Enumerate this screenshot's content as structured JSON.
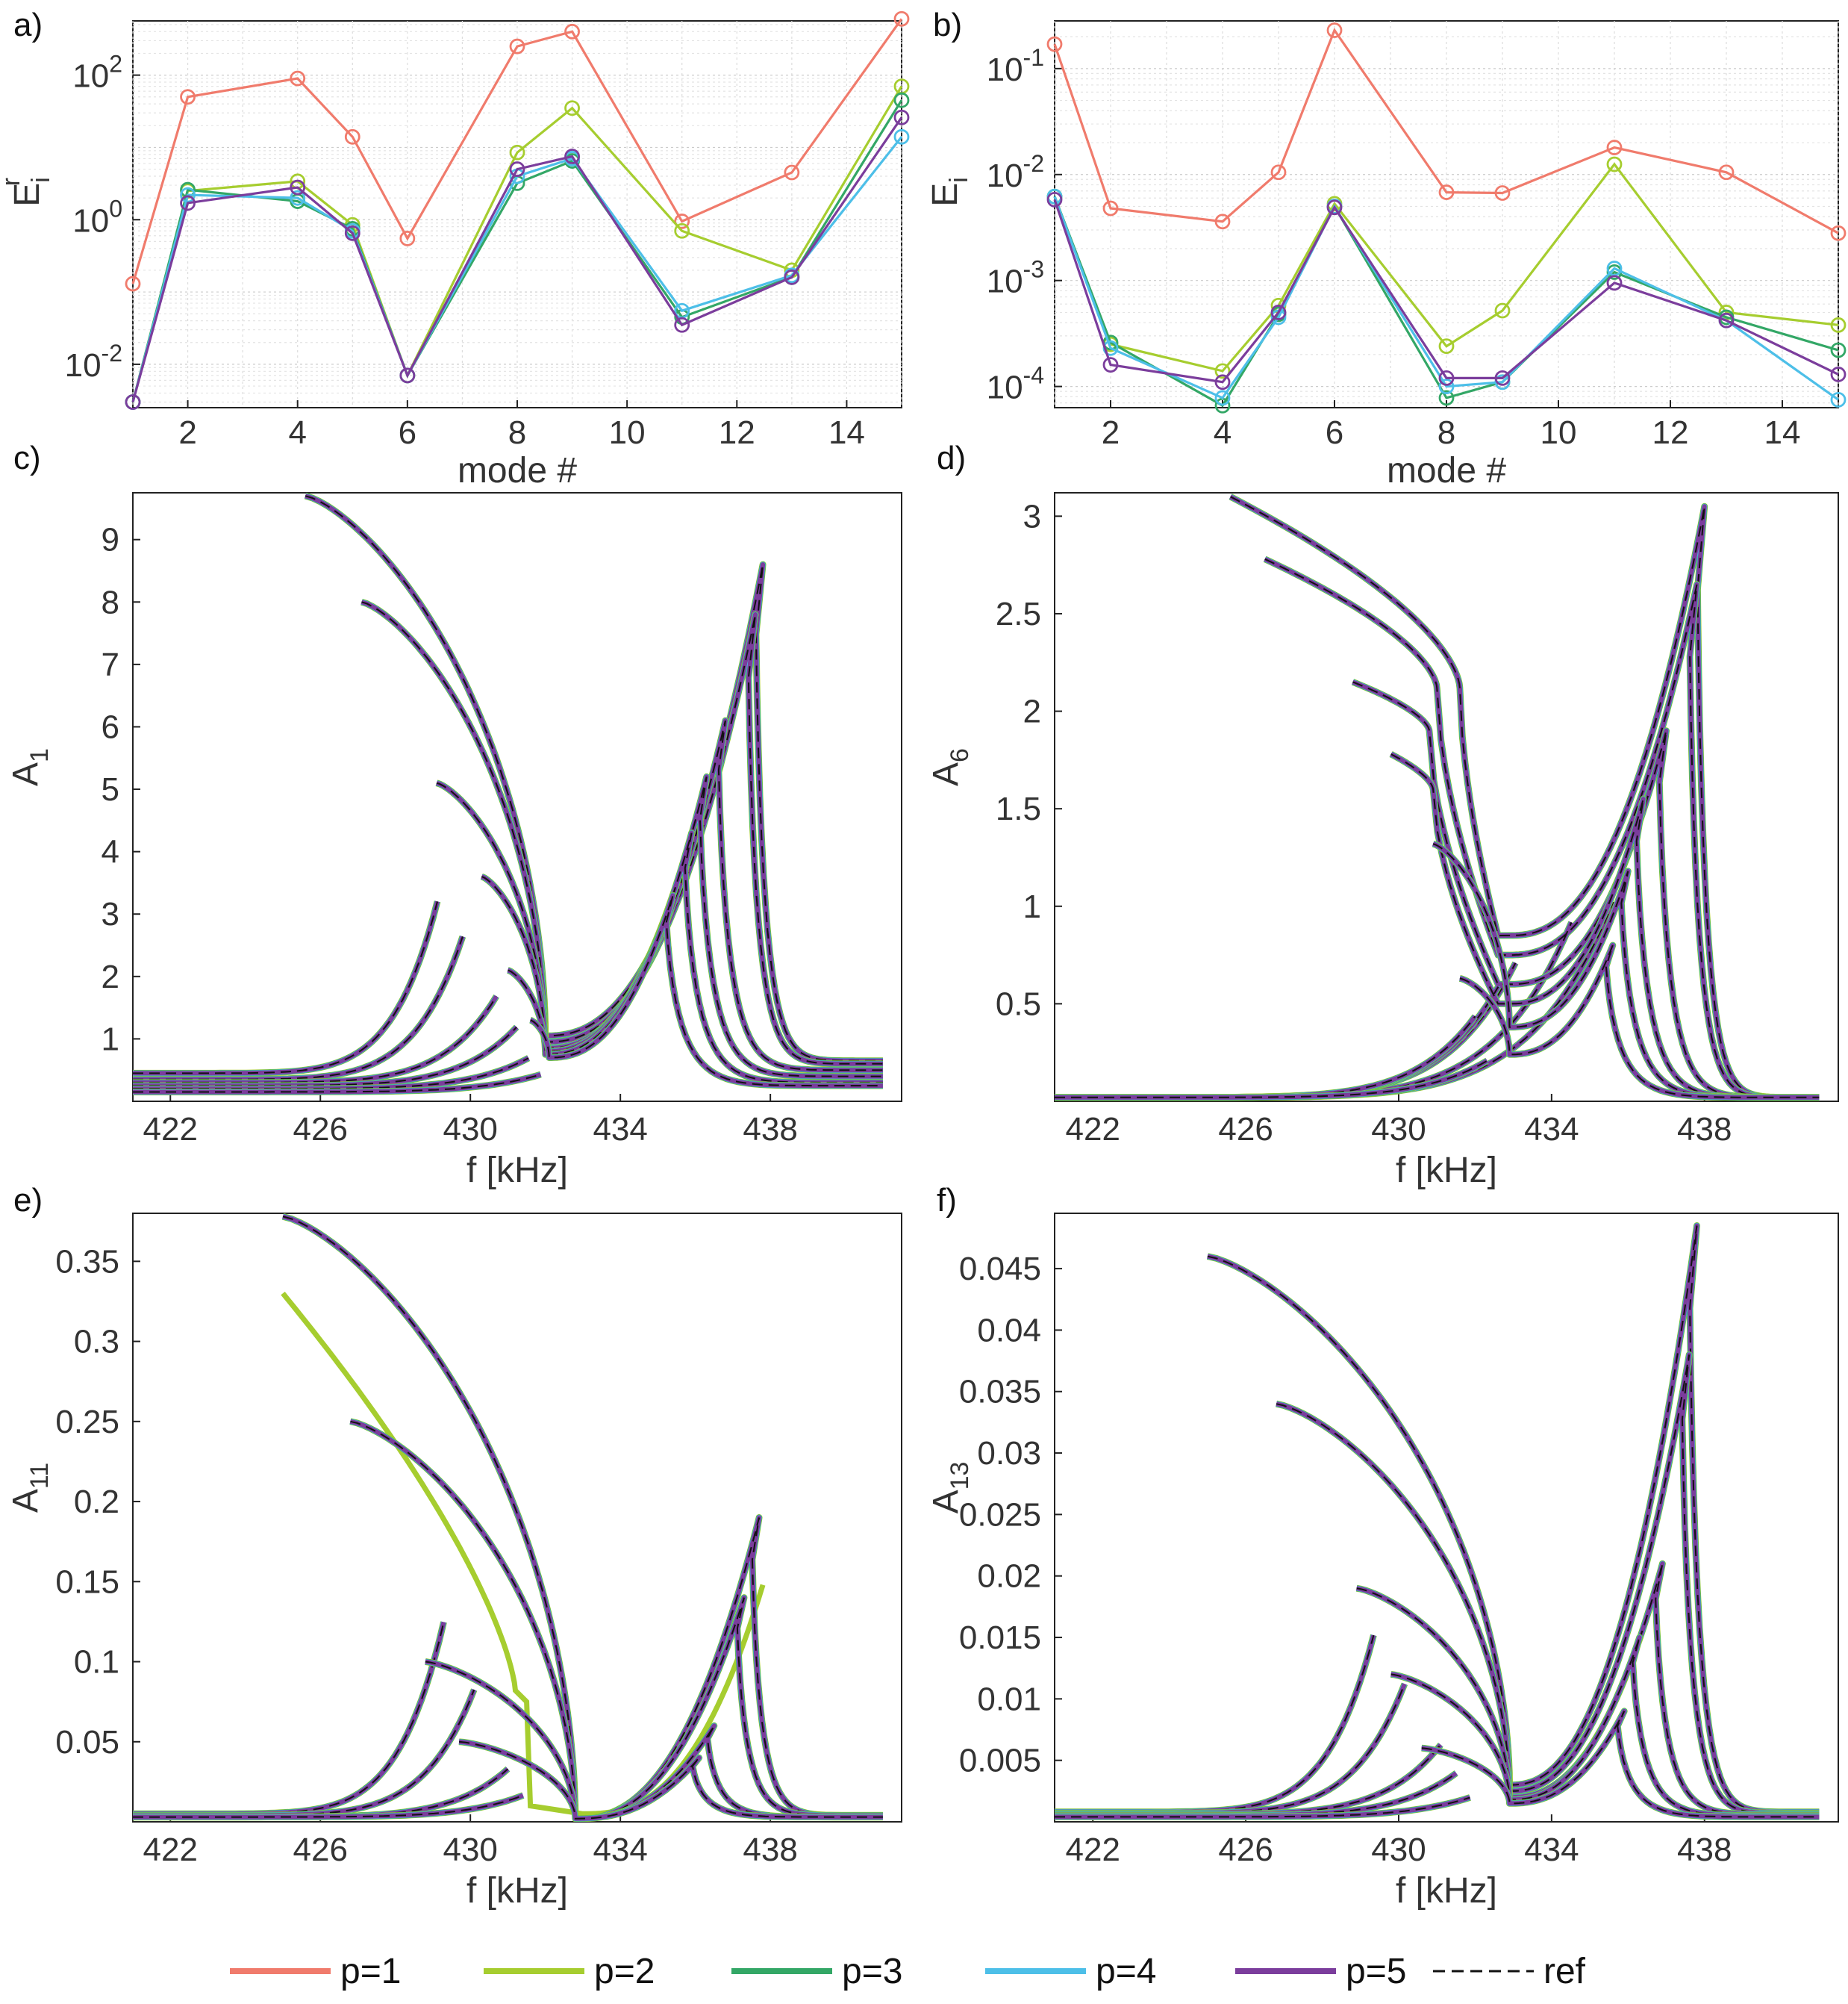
{
  "palette": {
    "p1": "#f07b6c",
    "p2": "#a6cd2f",
    "p3": "#33a766",
    "p4": "#4dbfe8",
    "p5": "#7b3d9c",
    "ref": "#111111"
  },
  "legend": [
    {
      "label": "p=1",
      "color": "#f07b6c",
      "dashed": false
    },
    {
      "label": "p=2",
      "color": "#a6cd2f",
      "dashed": false
    },
    {
      "label": "p=3",
      "color": "#33a766",
      "dashed": false
    },
    {
      "label": "p=4",
      "color": "#4dbfe8",
      "dashed": false
    },
    {
      "label": "p=5",
      "color": "#7b3d9c",
      "dashed": false
    },
    {
      "label": "ref",
      "color": "#111111",
      "dashed": true
    }
  ],
  "chart_data": [
    {
      "panel": "a)",
      "type": "line",
      "xlabel": "mode #",
      "ylabel": "E_i^r",
      "yscale": "log",
      "xlim": [
        1,
        15
      ],
      "ylim_log10": [
        -2.6,
        2.75
      ],
      "xticks": [
        2,
        4,
        6,
        8,
        10,
        12,
        14
      ],
      "yticks": [
        {
          "v": 2,
          "mant": "10",
          "exp": "2"
        },
        {
          "v": 0,
          "mant": "10",
          "exp": "0"
        },
        {
          "v": -2,
          "mant": "10",
          "exp": "-2"
        }
      ],
      "x": [
        1,
        2,
        4,
        5,
        6,
        8,
        9,
        11,
        13,
        15
      ],
      "series": [
        {
          "name": "p=1",
          "values": [
            0.13,
            50,
            90,
            14,
            0.55,
            250,
            400,
            0.95,
            4.5,
            600
          ]
        },
        {
          "name": "p=2",
          "values": [
            0.003,
            2.5,
            3.4,
            0.85,
            0.007,
            8.5,
            35,
            0.7,
            0.2,
            70
          ]
        },
        {
          "name": "p=3",
          "values": [
            0.003,
            2.6,
            1.8,
            0.75,
            0.007,
            3.2,
            6.5,
            0.045,
            0.16,
            45
          ]
        },
        {
          "name": "p=4",
          "values": [
            0.003,
            2.2,
            2.0,
            0.7,
            0.007,
            4.0,
            7.0,
            0.055,
            0.17,
            14
          ]
        },
        {
          "name": "p=5",
          "values": [
            0.003,
            1.7,
            2.8,
            0.65,
            0.007,
            5.0,
            7.5,
            0.035,
            0.16,
            26
          ]
        }
      ]
    },
    {
      "panel": "b)",
      "type": "line",
      "xlabel": "mode #",
      "ylabel": "E_i",
      "yscale": "log",
      "xlim": [
        1,
        15
      ],
      "ylim_log10": [
        -4.2,
        -0.55
      ],
      "xticks": [
        2,
        4,
        6,
        8,
        10,
        12,
        14
      ],
      "yticks": [
        {
          "v": -1,
          "mant": "10",
          "exp": "-1"
        },
        {
          "v": -2,
          "mant": "10",
          "exp": "-2"
        },
        {
          "v": -3,
          "mant": "10",
          "exp": "-3"
        },
        {
          "v": -4,
          "mant": "10",
          "exp": "-4"
        }
      ],
      "x": [
        1,
        2,
        4,
        5,
        6,
        8,
        9,
        11,
        13,
        15
      ],
      "series": [
        {
          "name": "p=1",
          "values": [
            0.17,
            0.0048,
            0.0036,
            0.0105,
            0.23,
            0.0068,
            0.0067,
            0.018,
            0.0105,
            0.0028
          ]
        },
        {
          "name": "p=2",
          "values": [
            0.0062,
            0.00025,
            0.00014,
            0.00058,
            0.0053,
            0.00024,
            0.00052,
            0.0125,
            0.0005,
            0.00038
          ]
        },
        {
          "name": "p=3",
          "values": [
            0.0062,
            0.00026,
            6.6e-05,
            0.00048,
            0.005,
            7.8e-05,
            0.00011,
            0.0012,
            0.00045,
            0.00022
          ]
        },
        {
          "name": "p=4",
          "values": [
            0.0062,
            0.00023,
            7.8e-05,
            0.00045,
            0.005,
            0.0001,
            0.00011,
            0.0013,
            0.00042,
            7.5e-05
          ]
        },
        {
          "name": "p=5",
          "values": [
            0.0058,
            0.00016,
            0.00011,
            0.0005,
            0.0049,
            0.00012,
            0.00012,
            0.00095,
            0.00042,
            0.00013
          ]
        }
      ]
    },
    {
      "panel": "c)",
      "type": "line",
      "xlabel": "f [kHz]",
      "ylabel": "A_1",
      "ylabel_sub": "1",
      "xlim": [
        421,
        441.5
      ],
      "ylim": [
        0,
        9.75
      ],
      "xticks": [
        422,
        426,
        430,
        434,
        438
      ],
      "yticks": [
        1,
        2,
        3,
        4,
        5,
        6,
        7,
        8,
        9
      ],
      "curves": [
        {
          "left_peak": [
            425.6,
            9.7
          ],
          "right_peak": [
            437.8,
            8.6
          ],
          "dip": [
            432.0,
            1.05
          ],
          "floor": 0.45,
          "tail": 0.65
        },
        {
          "left_peak": [
            427.1,
            8.0
          ],
          "right_peak": [
            437.6,
            7.8
          ],
          "dip": [
            432.0,
            0.95
          ],
          "floor": 0.35,
          "tail": 0.6
        },
        {
          "left_peak": [
            429.1,
            5.1
          ],
          "right_peak": [
            436.8,
            6.1
          ],
          "dip": [
            432.0,
            0.85
          ],
          "floor": 0.3,
          "tail": 0.5
        },
        {
          "left_peak": [
            430.3,
            3.6
          ],
          "right_peak": [
            436.3,
            5.2
          ],
          "dip": [
            432.0,
            0.8
          ],
          "floor": 0.25,
          "tail": 0.4
        },
        {
          "left_peak": [
            431.0,
            2.1
          ],
          "right_peak": [
            435.9,
            4.3
          ],
          "dip": [
            432.0,
            0.75
          ],
          "floor": 0.2,
          "tail": 0.3
        },
        {
          "left_peak": [
            431.6,
            1.3
          ],
          "right_peak": [
            435.4,
            3.3
          ],
          "dip": [
            432.1,
            0.7
          ],
          "floor": 0.15,
          "tail": 0.25
        }
      ]
    },
    {
      "panel": "d)",
      "type": "line",
      "xlabel": "f [kHz]",
      "ylabel": "A_6",
      "ylabel_sub": "6",
      "xlim": [
        421,
        441.5
      ],
      "ylim": [
        0,
        3.12
      ],
      "xticks": [
        422,
        426,
        430,
        434,
        438
      ],
      "yticks": [
        0.5,
        1,
        1.5,
        2,
        2.5,
        3
      ],
      "yticklabels": [
        "0.5",
        "1",
        "1.5",
        "2",
        "2.5",
        "3"
      ],
      "curves": [
        {
          "left_peak": [
            425.6,
            3.1
          ],
          "right_peak": [
            438.0,
            3.05
          ],
          "dip": [
            432.9,
            0.85
          ],
          "floor": 0.02,
          "tail": 0.02,
          "shoulder": [
            431.6,
            2.12
          ]
        },
        {
          "left_peak": [
            426.5,
            2.78
          ],
          "right_peak": [
            437.8,
            2.65
          ],
          "dip": [
            432.9,
            0.75
          ],
          "floor": 0.02,
          "tail": 0.02,
          "shoulder": [
            431.0,
            2.12
          ]
        },
        {
          "left_peak": [
            428.8,
            2.15
          ],
          "right_peak": [
            437.0,
            1.9
          ],
          "dip": [
            432.9,
            0.6
          ],
          "floor": 0.02,
          "tail": 0.02,
          "shoulder": [
            430.8,
            1.9
          ]
        },
        {
          "left_peak": [
            429.8,
            1.78
          ],
          "right_peak": [
            436.4,
            1.55
          ],
          "dip": [
            432.9,
            0.5
          ],
          "floor": 0.02,
          "tail": 0.02,
          "shoulder": [
            430.9,
            1.6
          ]
        },
        {
          "left_peak": [
            430.9,
            1.32
          ],
          "right_peak": [
            436.0,
            1.18
          ],
          "dip": [
            432.9,
            0.38
          ],
          "floor": 0.02,
          "tail": 0.02
        },
        {
          "left_peak": [
            431.6,
            0.63
          ],
          "right_peak": [
            435.6,
            0.8
          ],
          "dip": [
            432.9,
            0.24
          ],
          "floor": 0.02,
          "tail": 0.02
        }
      ]
    },
    {
      "panel": "e)",
      "type": "line",
      "xlabel": "f [kHz]",
      "ylabel": "A_11",
      "ylabel_sub": "11",
      "xlim": [
        421,
        441.5
      ],
      "ylim": [
        0,
        0.38
      ],
      "xticks": [
        422,
        426,
        430,
        434,
        438
      ],
      "yticks": [
        0.05,
        0.1,
        0.15,
        0.2,
        0.25,
        0.3,
        0.35
      ],
      "yticklabels": [
        "0.05",
        "0.1",
        "0.15",
        "0.2",
        "0.25",
        "0.3",
        "0.35"
      ],
      "curves": [
        {
          "left_peak": [
            425.0,
            0.378
          ],
          "right_peak": [
            437.7,
            0.19
          ],
          "dip": [
            432.8,
            0.002
          ],
          "floor": 0.005,
          "tail": 0.004
        },
        {
          "left_peak": [
            426.8,
            0.25
          ],
          "right_peak": [
            437.3,
            0.14
          ],
          "dip": [
            432.8,
            0.002
          ],
          "floor": 0.004,
          "tail": 0.004
        },
        {
          "left_peak": [
            428.8,
            0.1
          ],
          "right_peak": [
            436.5,
            0.06
          ],
          "dip": [
            432.8,
            0.002
          ],
          "floor": 0.003,
          "tail": 0.003
        },
        {
          "left_peak": [
            429.7,
            0.05
          ],
          "right_peak": [
            436.1,
            0.04
          ],
          "dip": [
            432.8,
            0.002
          ],
          "floor": 0.003,
          "tail": 0.003
        }
      ],
      "p2_curve": {
        "left_peak": [
          425.0,
          0.33
        ],
        "right_peak": [
          437.8,
          0.148
        ],
        "shoulder": [
          431.2,
          0.082
        ]
      }
    },
    {
      "panel": "f)",
      "type": "line",
      "xlabel": "f [kHz]",
      "ylabel": "A_13",
      "ylabel_sub": "13",
      "xlim": [
        421,
        441.5
      ],
      "ylim": [
        0,
        0.0495
      ],
      "xticks": [
        422,
        426,
        430,
        434,
        438
      ],
      "yticks": [
        0.005,
        0.01,
        0.015,
        0.02,
        0.025,
        0.03,
        0.035,
        0.04,
        0.045
      ],
      "yticklabels": [
        "0.005",
        "0.01",
        "0.015",
        "0.02",
        "0.025",
        "0.03",
        "0.035",
        "0.04",
        "0.045"
      ],
      "curves": [
        {
          "left_peak": [
            425.0,
            0.046
          ],
          "right_peak": [
            437.8,
            0.0485
          ],
          "dip": [
            432.9,
            0.003
          ],
          "floor": 0.0008,
          "tail": 0.0008
        },
        {
          "left_peak": [
            426.8,
            0.034
          ],
          "right_peak": [
            437.6,
            0.038
          ],
          "dip": [
            432.9,
            0.0025
          ],
          "floor": 0.0007,
          "tail": 0.0007
        },
        {
          "left_peak": [
            428.9,
            0.019
          ],
          "right_peak": [
            436.9,
            0.021
          ],
          "dip": [
            432.9,
            0.002
          ],
          "floor": 0.0006,
          "tail": 0.0006
        },
        {
          "left_peak": [
            429.8,
            0.012
          ],
          "right_peak": [
            436.3,
            0.015
          ],
          "dip": [
            432.9,
            0.0018
          ],
          "floor": 0.0005,
          "tail": 0.0005
        },
        {
          "left_peak": [
            430.6,
            0.006
          ],
          "right_peak": [
            435.9,
            0.009
          ],
          "dip": [
            432.9,
            0.0015
          ],
          "floor": 0.0004,
          "tail": 0.0004
        }
      ]
    }
  ]
}
